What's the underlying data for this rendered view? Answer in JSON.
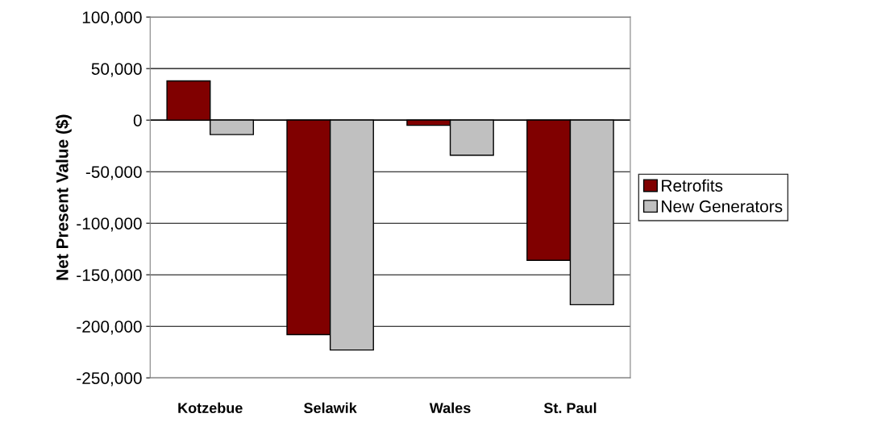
{
  "chart_data": {
    "type": "bar",
    "ylabel": "Net Present Value ($)",
    "categories": [
      "Kotzebue",
      "Selawik",
      "Wales",
      "St. Paul"
    ],
    "series": [
      {
        "name": "Retrofits",
        "color": "#800000",
        "values": [
          38000,
          -208000,
          -5000,
          -136000
        ]
      },
      {
        "name": "New Generators",
        "color": "#c0c0c0",
        "values": [
          -14000,
          -223000,
          -34000,
          -179000
        ]
      }
    ],
    "ylim": [
      -250000,
      100000
    ],
    "yticks": [
      {
        "value": -250000,
        "label": "-250,000"
      },
      {
        "value": -200000,
        "label": "-200,000"
      },
      {
        "value": -150000,
        "label": "-150,000"
      },
      {
        "value": -100000,
        "label": "-100,000"
      },
      {
        "value": -50000,
        "label": "-50,000"
      },
      0,
      {
        "value": 50000,
        "label": "50,000"
      },
      {
        "value": 100000,
        "label": "100,000"
      }
    ],
    "grid": "y",
    "legend": "right"
  }
}
